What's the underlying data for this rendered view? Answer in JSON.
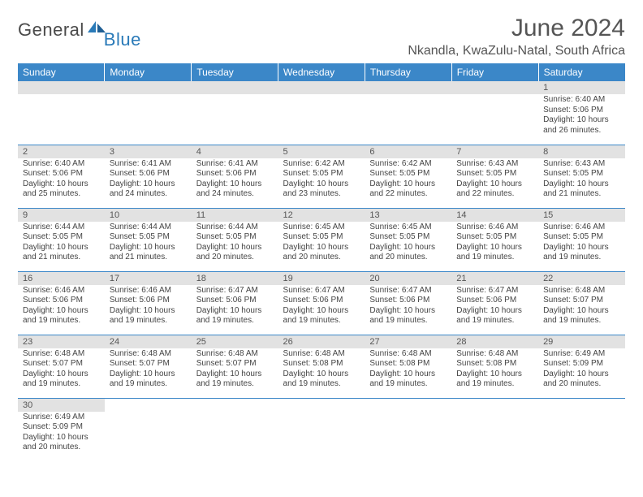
{
  "brand": {
    "general": "General",
    "blue": "Blue"
  },
  "title": "June 2024",
  "location": "Nkandla, KwaZulu-Natal, South Africa",
  "colors": {
    "header_bg": "#3b87c8",
    "header_text": "#ffffff",
    "daynum_bg": "#e2e2e2",
    "cell_border": "#3b87c8",
    "body_text": "#444444",
    "title_text": "#555555",
    "logo_gray": "#4a4a4a",
    "logo_blue": "#2a7ab8"
  },
  "day_headers": [
    "Sunday",
    "Monday",
    "Tuesday",
    "Wednesday",
    "Thursday",
    "Friday",
    "Saturday"
  ],
  "weeks": [
    [
      null,
      null,
      null,
      null,
      null,
      null,
      {
        "n": "1",
        "sr": "6:40 AM",
        "ss": "5:06 PM",
        "dl": "10 hours and 26 minutes."
      }
    ],
    [
      {
        "n": "2",
        "sr": "6:40 AM",
        "ss": "5:06 PM",
        "dl": "10 hours and 25 minutes."
      },
      {
        "n": "3",
        "sr": "6:41 AM",
        "ss": "5:06 PM",
        "dl": "10 hours and 24 minutes."
      },
      {
        "n": "4",
        "sr": "6:41 AM",
        "ss": "5:06 PM",
        "dl": "10 hours and 24 minutes."
      },
      {
        "n": "5",
        "sr": "6:42 AM",
        "ss": "5:05 PM",
        "dl": "10 hours and 23 minutes."
      },
      {
        "n": "6",
        "sr": "6:42 AM",
        "ss": "5:05 PM",
        "dl": "10 hours and 22 minutes."
      },
      {
        "n": "7",
        "sr": "6:43 AM",
        "ss": "5:05 PM",
        "dl": "10 hours and 22 minutes."
      },
      {
        "n": "8",
        "sr": "6:43 AM",
        "ss": "5:05 PM",
        "dl": "10 hours and 21 minutes."
      }
    ],
    [
      {
        "n": "9",
        "sr": "6:44 AM",
        "ss": "5:05 PM",
        "dl": "10 hours and 21 minutes."
      },
      {
        "n": "10",
        "sr": "6:44 AM",
        "ss": "5:05 PM",
        "dl": "10 hours and 21 minutes."
      },
      {
        "n": "11",
        "sr": "6:44 AM",
        "ss": "5:05 PM",
        "dl": "10 hours and 20 minutes."
      },
      {
        "n": "12",
        "sr": "6:45 AM",
        "ss": "5:05 PM",
        "dl": "10 hours and 20 minutes."
      },
      {
        "n": "13",
        "sr": "6:45 AM",
        "ss": "5:05 PM",
        "dl": "10 hours and 20 minutes."
      },
      {
        "n": "14",
        "sr": "6:46 AM",
        "ss": "5:05 PM",
        "dl": "10 hours and 19 minutes."
      },
      {
        "n": "15",
        "sr": "6:46 AM",
        "ss": "5:05 PM",
        "dl": "10 hours and 19 minutes."
      }
    ],
    [
      {
        "n": "16",
        "sr": "6:46 AM",
        "ss": "5:06 PM",
        "dl": "10 hours and 19 minutes."
      },
      {
        "n": "17",
        "sr": "6:46 AM",
        "ss": "5:06 PM",
        "dl": "10 hours and 19 minutes."
      },
      {
        "n": "18",
        "sr": "6:47 AM",
        "ss": "5:06 PM",
        "dl": "10 hours and 19 minutes."
      },
      {
        "n": "19",
        "sr": "6:47 AM",
        "ss": "5:06 PM",
        "dl": "10 hours and 19 minutes."
      },
      {
        "n": "20",
        "sr": "6:47 AM",
        "ss": "5:06 PM",
        "dl": "10 hours and 19 minutes."
      },
      {
        "n": "21",
        "sr": "6:47 AM",
        "ss": "5:06 PM",
        "dl": "10 hours and 19 minutes."
      },
      {
        "n": "22",
        "sr": "6:48 AM",
        "ss": "5:07 PM",
        "dl": "10 hours and 19 minutes."
      }
    ],
    [
      {
        "n": "23",
        "sr": "6:48 AM",
        "ss": "5:07 PM",
        "dl": "10 hours and 19 minutes."
      },
      {
        "n": "24",
        "sr": "6:48 AM",
        "ss": "5:07 PM",
        "dl": "10 hours and 19 minutes."
      },
      {
        "n": "25",
        "sr": "6:48 AM",
        "ss": "5:07 PM",
        "dl": "10 hours and 19 minutes."
      },
      {
        "n": "26",
        "sr": "6:48 AM",
        "ss": "5:08 PM",
        "dl": "10 hours and 19 minutes."
      },
      {
        "n": "27",
        "sr": "6:48 AM",
        "ss": "5:08 PM",
        "dl": "10 hours and 19 minutes."
      },
      {
        "n": "28",
        "sr": "6:48 AM",
        "ss": "5:08 PM",
        "dl": "10 hours and 19 minutes."
      },
      {
        "n": "29",
        "sr": "6:49 AM",
        "ss": "5:09 PM",
        "dl": "10 hours and 20 minutes."
      }
    ],
    [
      {
        "n": "30",
        "sr": "6:49 AM",
        "ss": "5:09 PM",
        "dl": "10 hours and 20 minutes."
      },
      null,
      null,
      null,
      null,
      null,
      null
    ]
  ],
  "labels": {
    "sunrise": "Sunrise:",
    "sunset": "Sunset:",
    "daylight": "Daylight:"
  }
}
